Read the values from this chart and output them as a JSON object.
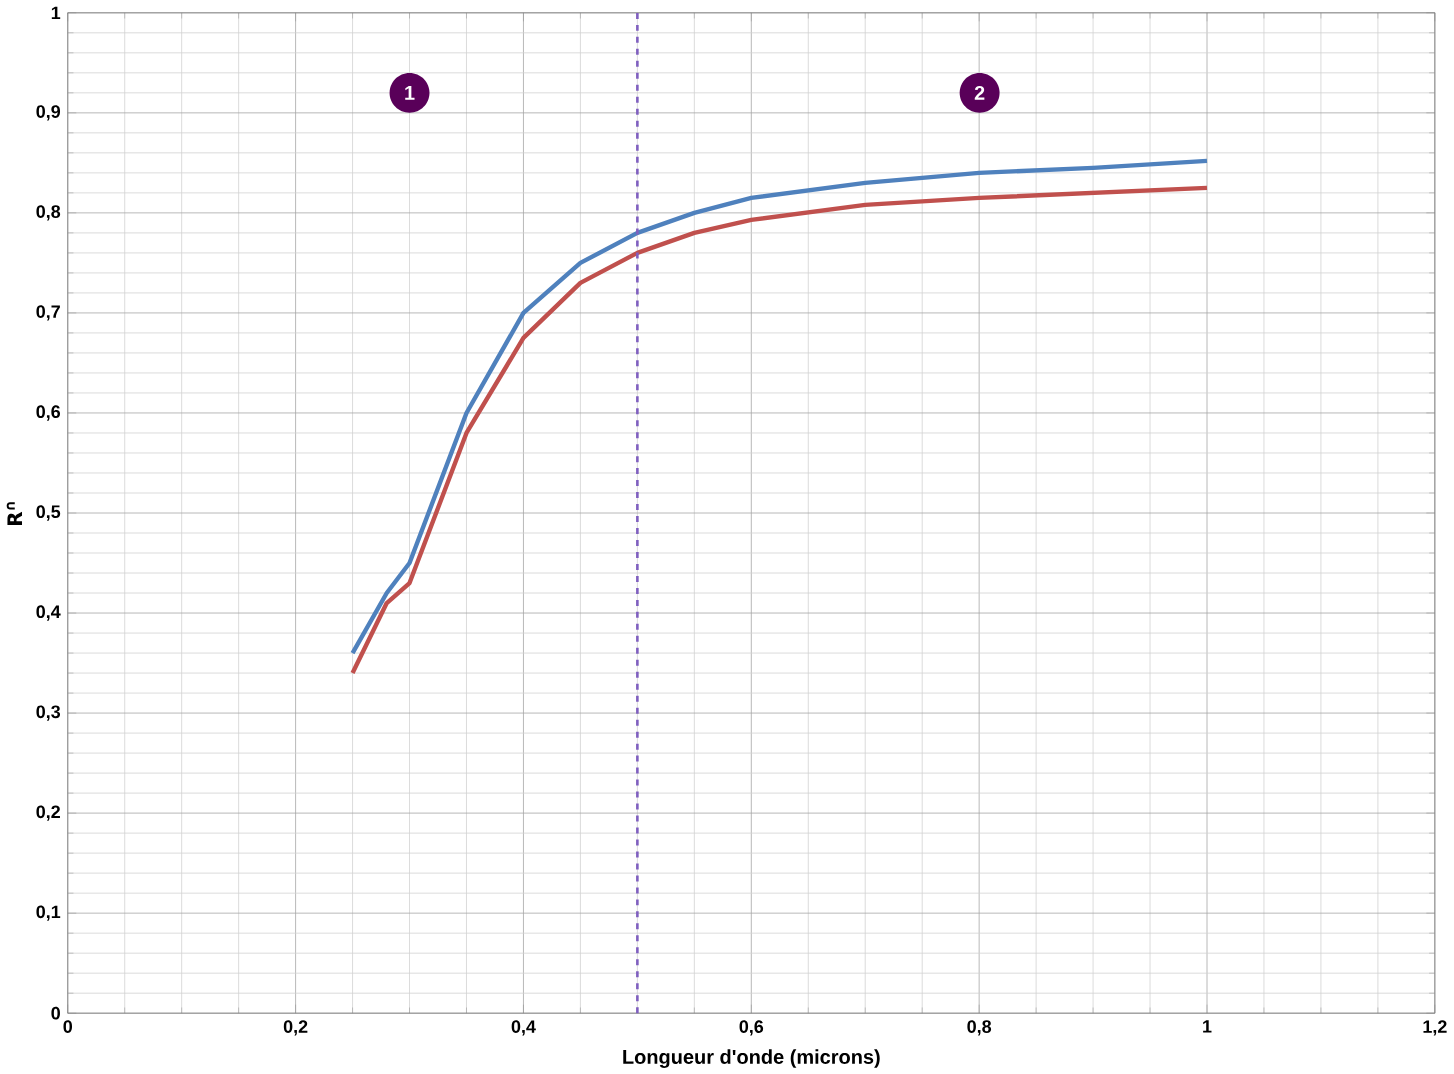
{
  "chart_data": {
    "type": "line",
    "xlabel": "Longueur d'onde (microns)",
    "ylabel": "R$^{∩}$",
    "xlim": [
      0,
      1.2
    ],
    "ylim": [
      0,
      1
    ],
    "xticks": [
      0,
      {
        "value": 0.2,
        "label": "0,2"
      },
      {
        "value": 0.4,
        "label": "0,4"
      },
      {
        "value": 0.6,
        "label": "0,6"
      },
      {
        "value": 0.8,
        "label": "0,8"
      },
      1,
      {
        "value": 1.2,
        "label": "1,2"
      }
    ],
    "yticks": [
      0,
      {
        "value": 0.1,
        "label": "0,1"
      },
      {
        "value": 0.2,
        "label": "0,2"
      },
      {
        "value": 0.3,
        "label": "0,3"
      },
      {
        "value": 0.4,
        "label": "0,4"
      },
      {
        "value": 0.5,
        "label": "0,5"
      },
      {
        "value": 0.6,
        "label": "0,6"
      },
      {
        "value": 0.7,
        "label": "0,7"
      },
      {
        "value": 0.8,
        "label": "0,8"
      },
      {
        "value": 0.9,
        "label": "0,9"
      },
      1
    ],
    "grid": true,
    "marker": "none",
    "line_style": "solid",
    "x": [
      0.25,
      0.28,
      0.3,
      0.35,
      0.4,
      0.45,
      0.5,
      0.55,
      0.6,
      0.7,
      0.8,
      0.9,
      1.0
    ],
    "series": [
      {
        "color": "#c0504d",
        "values": [
          0.34,
          0.41,
          0.43,
          0.58,
          0.675,
          0.73,
          0.76,
          0.78,
          0.793,
          0.808,
          0.815,
          0.82,
          0.825
        ]
      },
      {
        "color": "#4f81bd",
        "values": [
          0.36,
          0.42,
          0.45,
          0.6,
          0.7,
          0.75,
          0.78,
          0.8,
          0.815,
          0.83,
          0.84,
          0.845,
          0.852
        ]
      }
    ],
    "ref_lines": [
      {
        "axis": "x",
        "value": 0.5,
        "color": "#7f5fbf",
        "line_style": "dashed"
      }
    ],
    "annotations": [
      "1",
      "2"
    ]
  }
}
